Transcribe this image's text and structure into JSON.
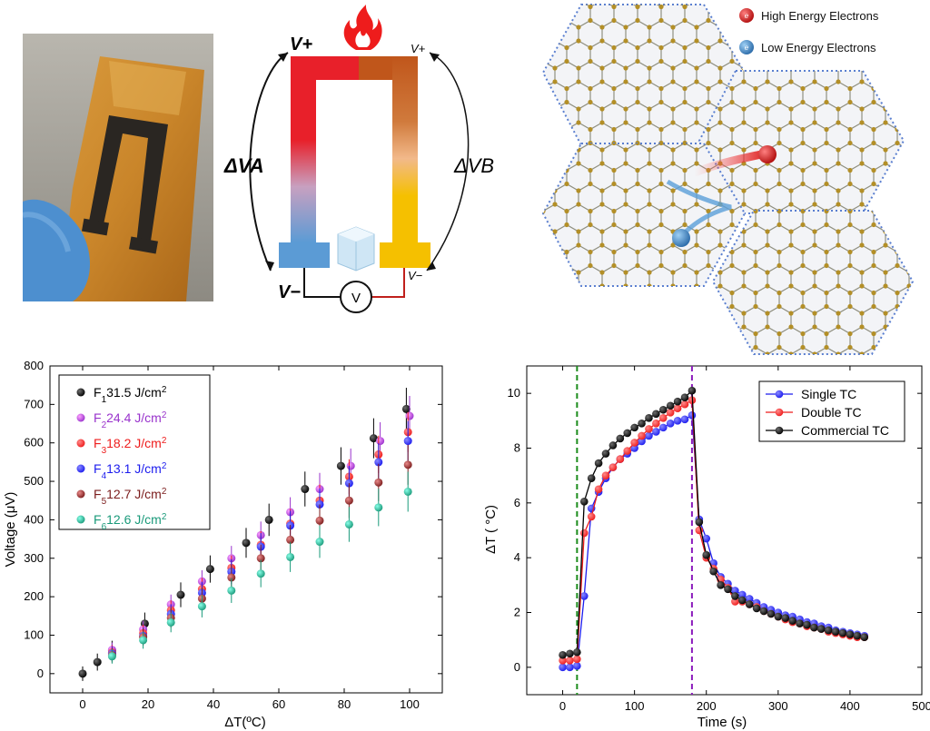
{
  "device_diagram": {
    "v_plus_left": "V+",
    "v_minus_left": "V−",
    "v_plus_right": "V+",
    "v_minus_right": "V−",
    "delta_va": "ΔVA",
    "delta_vb": "ΔVB",
    "meter": "V",
    "colors": {
      "hot_left": "#e8202a",
      "cold_left": "#5b9bd5",
      "hot_right": "#c0561b",
      "cold_right": "#f5c000"
    }
  },
  "lattice_diagram": {
    "legend": [
      {
        "label": "High Energy Electrons",
        "color": "#d91c1c",
        "glyph": "e"
      },
      {
        "label": "Low Energy Electrons",
        "color": "#3a7fc4",
        "glyph": "e"
      }
    ]
  },
  "chart_data": [
    {
      "type": "scatter",
      "xlabel": "ΔT(ºC)",
      "ylabel": "Voltage (μV)",
      "xlim": [
        -10,
        110
      ],
      "ylim": [
        -50,
        800
      ],
      "xticks": [
        0,
        20,
        40,
        60,
        80,
        100
      ],
      "yticks": [
        0,
        100,
        200,
        300,
        400,
        500,
        600,
        700,
        800
      ],
      "legend_position": "top-left",
      "series": [
        {
          "name": "F1=31.5 J/cm2",
          "color": "#000000",
          "x": [
            0,
            4.5,
            9,
            19,
            30,
            39,
            50,
            57,
            68,
            79,
            89,
            99
          ],
          "y": [
            0,
            30,
            60,
            130,
            205,
            272,
            340,
            400,
            480,
            540,
            612,
            688
          ]
        },
        {
          "name": "F2=24.4 J/cm2",
          "color": "#9933cc",
          "x": [
            9,
            18.5,
            27,
            36.5,
            45.5,
            54.5,
            63.5,
            72.5,
            82,
            91,
            100
          ],
          "y": [
            62,
            115,
            180,
            240,
            300,
            360,
            420,
            480,
            540,
            605,
            670
          ]
        },
        {
          "name": "F3=18.2 J/cm2",
          "color": "#ee1c1c",
          "x": [
            9,
            18.5,
            27,
            36.5,
            45.5,
            54.5,
            63.5,
            72.5,
            81.5,
            90.5,
            99.5
          ],
          "y": [
            55,
            105,
            165,
            220,
            275,
            335,
            390,
            450,
            512,
            570,
            628
          ]
        },
        {
          "name": "F4=13.1 J/cm2",
          "color": "#1c1cee",
          "x": [
            9,
            18.5,
            27,
            36.5,
            45.5,
            54.5,
            63.5,
            72.5,
            81.5,
            90.5,
            99.5
          ],
          "y": [
            52,
            98,
            155,
            210,
            265,
            330,
            385,
            440,
            495,
            550,
            605
          ]
        },
        {
          "name": "F5=12.7 J/cm2",
          "color": "#7b1c1c",
          "x": [
            9,
            18.5,
            27,
            36.5,
            45.5,
            54.5,
            63.5,
            72.5,
            81.5,
            90.5,
            99.5
          ],
          "y": [
            48,
            95,
            145,
            195,
            250,
            300,
            348,
            398,
            450,
            497,
            543
          ]
        },
        {
          "name": "F6=12.6 J/cm2",
          "color": "#1a9a7a",
          "x": [
            9,
            18.5,
            27,
            36.5,
            45.5,
            54.5,
            63.5,
            72.5,
            81.5,
            90.5,
            99.5
          ],
          "y": [
            45,
            87,
            133,
            175,
            216,
            260,
            303,
            343,
            388,
            432,
            473
          ]
        }
      ]
    },
    {
      "type": "line",
      "xlabel": "Time (s)",
      "ylabel": "ΔT ( °C)",
      "xlim": [
        -50,
        500
      ],
      "ylim": [
        -1,
        11
      ],
      "xticks": [
        0,
        100,
        200,
        300,
        400,
        500
      ],
      "yticks": [
        0,
        2,
        4,
        6,
        8,
        10
      ],
      "legend_position": "top-right",
      "vlines": [
        {
          "x": 20,
          "color": "#1c8c1c"
        },
        {
          "x": 180,
          "color": "#8c1cbc"
        }
      ],
      "series": [
        {
          "name": "Single TC",
          "color": "#1c1cee",
          "x": [
            0,
            10,
            20,
            30,
            40,
            50,
            60,
            70,
            80,
            90,
            100,
            110,
            120,
            130,
            140,
            150,
            160,
            170,
            180,
            190,
            200,
            210,
            220,
            230,
            240,
            250,
            260,
            270,
            280,
            290,
            300,
            310,
            320,
            330,
            340,
            350,
            360,
            370,
            380,
            390,
            400,
            410,
            420
          ],
          "y": [
            0,
            0,
            0.05,
            2.6,
            5.8,
            6.4,
            6.9,
            7.3,
            7.6,
            7.8,
            8.0,
            8.25,
            8.45,
            8.6,
            8.75,
            8.9,
            9.0,
            9.05,
            9.2,
            5.4,
            4.7,
            3.8,
            3.3,
            3.05,
            2.8,
            2.65,
            2.5,
            2.35,
            2.2,
            2.1,
            2.0,
            1.9,
            1.85,
            1.75,
            1.65,
            1.6,
            1.5,
            1.45,
            1.35,
            1.3,
            1.25,
            1.2,
            1.15
          ]
        },
        {
          "name": "Double TC",
          "color": "#ee1c1c",
          "x": [
            0,
            10,
            20,
            30,
            40,
            50,
            60,
            70,
            80,
            90,
            100,
            110,
            120,
            130,
            140,
            150,
            160,
            170,
            180,
            190,
            200,
            210,
            220,
            230,
            240,
            250,
            260,
            270,
            280,
            290,
            300,
            310,
            320,
            330,
            340,
            350,
            360,
            370,
            380,
            390,
            400,
            410,
            420
          ],
          "y": [
            0.25,
            0.25,
            0.3,
            4.9,
            5.5,
            6.5,
            7.0,
            7.3,
            7.6,
            7.9,
            8.2,
            8.45,
            8.7,
            8.9,
            9.1,
            9.3,
            9.45,
            9.6,
            9.75,
            5.0,
            4.0,
            3.6,
            3.2,
            2.9,
            2.4,
            2.4,
            2.3,
            2.2,
            2.05,
            1.95,
            1.85,
            1.75,
            1.65,
            1.6,
            1.5,
            1.45,
            1.4,
            1.3,
            1.25,
            1.2,
            1.15,
            1.1,
            1.1
          ]
        },
        {
          "name": "Commercial TC",
          "color": "#000000",
          "x": [
            0,
            10,
            20,
            30,
            40,
            50,
            60,
            70,
            80,
            90,
            100,
            110,
            120,
            130,
            140,
            150,
            160,
            170,
            180,
            190,
            200,
            210,
            220,
            230,
            240,
            250,
            260,
            270,
            280,
            290,
            300,
            310,
            320,
            330,
            340,
            350,
            360,
            370,
            380,
            390,
            400,
            410,
            420
          ],
          "y": [
            0.45,
            0.5,
            0.55,
            6.05,
            6.9,
            7.45,
            7.8,
            8.1,
            8.35,
            8.55,
            8.75,
            8.9,
            9.1,
            9.25,
            9.4,
            9.55,
            9.7,
            9.85,
            10.1,
            5.3,
            4.1,
            3.5,
            3.0,
            2.85,
            2.6,
            2.45,
            2.3,
            2.15,
            2.05,
            1.95,
            1.85,
            1.8,
            1.7,
            1.6,
            1.55,
            1.45,
            1.4,
            1.35,
            1.3,
            1.25,
            1.2,
            1.15,
            1.1
          ]
        }
      ]
    }
  ]
}
